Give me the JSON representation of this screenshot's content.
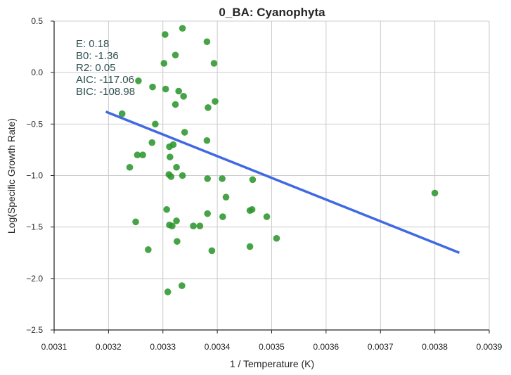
{
  "chart_data": {
    "type": "scatter",
    "title": "0_BA: Cyanophyta",
    "xlabel": "1 / Temperature (K)",
    "ylabel": "Log(Specific Growth Rate)",
    "xlim": [
      0.0031,
      0.0039
    ],
    "ylim": [
      -2.5,
      0.5
    ],
    "x_ticks": [
      {
        "value": 0.0031,
        "label": "0.0031"
      },
      {
        "value": 0.0032,
        "label": "0.0032"
      },
      {
        "value": 0.0033,
        "label": "0.0033"
      },
      {
        "value": 0.0034,
        "label": "0.0034"
      },
      {
        "value": 0.0035,
        "label": "0.0035"
      },
      {
        "value": 0.0036,
        "label": "0.0036"
      },
      {
        "value": 0.0037,
        "label": "0.0037"
      },
      {
        "value": 0.0038,
        "label": "0.0038"
      },
      {
        "value": 0.0039,
        "label": "0.0039"
      }
    ],
    "y_ticks": [
      {
        "value": 0.5,
        "label": "0.5"
      },
      {
        "value": 0.0,
        "label": "0.0"
      },
      {
        "value": -0.5,
        "label": "−0.5"
      },
      {
        "value": -1.0,
        "label": "−1.0"
      },
      {
        "value": -1.5,
        "label": "−1.5"
      },
      {
        "value": -2.0,
        "label": "−2.0"
      },
      {
        "value": -2.5,
        "label": "−2.5"
      }
    ],
    "grid": true,
    "point_color": "#2e962e",
    "line_color": "#4169e1",
    "points": [
      [
        0.003336,
        0.43
      ],
      [
        0.003304,
        0.37
      ],
      [
        0.003381,
        0.3
      ],
      [
        0.003323,
        0.17
      ],
      [
        0.003302,
        0.09
      ],
      [
        0.003394,
        0.09
      ],
      [
        0.003255,
        -0.08
      ],
      [
        0.003281,
        -0.14
      ],
      [
        0.003305,
        -0.16
      ],
      [
        0.003329,
        -0.18
      ],
      [
        0.003338,
        -0.23
      ],
      [
        0.003396,
        -0.28
      ],
      [
        0.003323,
        -0.31
      ],
      [
        0.003383,
        -0.34
      ],
      [
        0.003225,
        -0.4
      ],
      [
        0.003286,
        -0.5
      ],
      [
        0.00334,
        -0.58
      ],
      [
        0.003381,
        -0.66
      ],
      [
        0.00328,
        -0.68
      ],
      [
        0.003319,
        -0.7
      ],
      [
        0.003312,
        -0.72
      ],
      [
        0.003253,
        -0.8
      ],
      [
        0.003263,
        -0.8
      ],
      [
        0.003313,
        -0.82
      ],
      [
        0.003239,
        -0.92
      ],
      [
        0.003325,
        -0.92
      ],
      [
        0.003311,
        -0.99
      ],
      [
        0.003315,
        -1.01
      ],
      [
        0.003336,
        -1.0
      ],
      [
        0.003382,
        -1.03
      ],
      [
        0.003409,
        -1.03
      ],
      [
        0.003465,
        -1.04
      ],
      [
        0.0038,
        -1.17
      ],
      [
        0.003416,
        -1.21
      ],
      [
        0.003464,
        -1.33
      ],
      [
        0.00346,
        -1.34
      ],
      [
        0.003307,
        -1.33
      ],
      [
        0.003382,
        -1.37
      ],
      [
        0.00341,
        -1.4
      ],
      [
        0.003491,
        -1.4
      ],
      [
        0.00325,
        -1.45
      ],
      [
        0.003325,
        -1.44
      ],
      [
        0.003312,
        -1.48
      ],
      [
        0.003317,
        -1.49
      ],
      [
        0.003356,
        -1.49
      ],
      [
        0.003368,
        -1.49
      ],
      [
        0.003509,
        -1.61
      ],
      [
        0.003326,
        -1.64
      ],
      [
        0.003273,
        -1.72
      ],
      [
        0.00339,
        -1.73
      ],
      [
        0.00346,
        -1.69
      ],
      [
        0.003335,
        -2.07
      ],
      [
        0.003309,
        -2.13
      ]
    ],
    "regression_line": {
      "x": [
        0.003195,
        0.003845
      ],
      "y": [
        -0.38,
        -1.75
      ]
    },
    "stats": [
      {
        "label": "E:",
        "value": "0.18"
      },
      {
        "label": "B0:",
        "value": "-1.36"
      },
      {
        "label": "R2:",
        "value": "0.05"
      },
      {
        "label": "AIC:",
        "value": "-117.06"
      },
      {
        "label": "BIC:",
        "value": "-108.98"
      }
    ]
  }
}
